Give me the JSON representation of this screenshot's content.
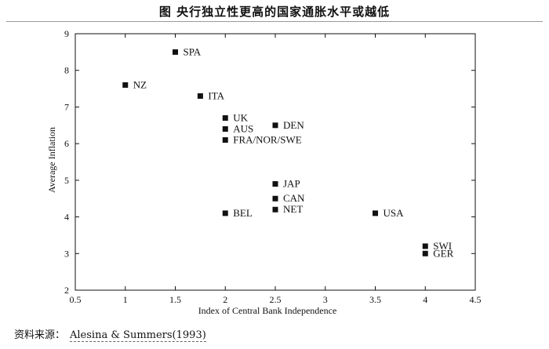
{
  "figure": {
    "title": "图    央行独立性更高的国家通胀水平或越低",
    "source_prefix": "资料来源：",
    "source_text": "Alesina & Summers(1993)"
  },
  "chart_data": {
    "type": "scatter",
    "title": "",
    "xlabel": "Index of Central Bank Independence",
    "ylabel": "Average Inflation",
    "xlim": [
      0.5,
      4.5
    ],
    "ylim": [
      2,
      9
    ],
    "xticks": [
      "0.5",
      "1",
      "1.5",
      "2",
      "2.5",
      "3",
      "3.5",
      "4",
      "4.5"
    ],
    "yticks": [
      "2",
      "3",
      "4",
      "5",
      "6",
      "7",
      "8",
      "9"
    ],
    "grid": false,
    "points": [
      {
        "label": "SPA",
        "x": 1.5,
        "y": 8.5
      },
      {
        "label": "NZ",
        "x": 1.0,
        "y": 7.6
      },
      {
        "label": "ITA",
        "x": 1.75,
        "y": 7.3
      },
      {
        "label": "UK",
        "x": 2.0,
        "y": 6.7
      },
      {
        "label": "AUS",
        "x": 2.0,
        "y": 6.4
      },
      {
        "label": "FRA/NOR/SWE",
        "x": 2.0,
        "y": 6.1
      },
      {
        "label": "DEN",
        "x": 2.5,
        "y": 6.5
      },
      {
        "label": "JAP",
        "x": 2.5,
        "y": 4.9
      },
      {
        "label": "CAN",
        "x": 2.5,
        "y": 4.5
      },
      {
        "label": "NET",
        "x": 2.5,
        "y": 4.2
      },
      {
        "label": "BEL",
        "x": 2.0,
        "y": 4.1
      },
      {
        "label": "USA",
        "x": 3.5,
        "y": 4.1
      },
      {
        "label": "SWI",
        "x": 4.0,
        "y": 3.2
      },
      {
        "label": "GER",
        "x": 4.0,
        "y": 3.0
      }
    ]
  }
}
